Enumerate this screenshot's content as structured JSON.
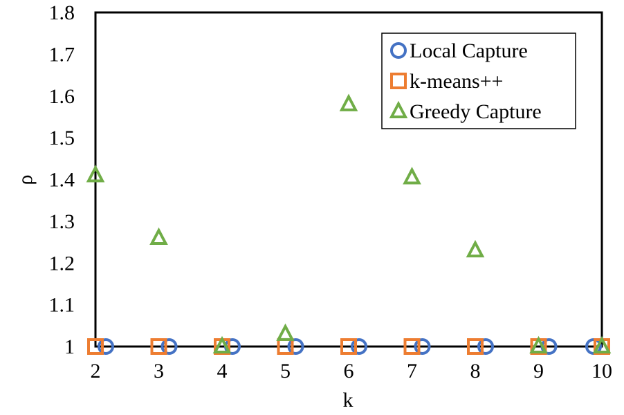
{
  "chart_data": {
    "type": "scatter",
    "xlabel": "k",
    "ylabel": "ρ",
    "x_ticks": [
      "2",
      "3",
      "4",
      "5",
      "6",
      "7",
      "8",
      "9",
      "10"
    ],
    "y_ticks": [
      "1",
      "1.1",
      "1.2",
      "1.3",
      "1.4",
      "1.5",
      "1.6",
      "1.7",
      "1.8"
    ],
    "xlim": [
      2,
      10
    ],
    "ylim": [
      1,
      1.8
    ],
    "grid": false,
    "legend_position": "top-right",
    "series": [
      {
        "name": "Local Capture",
        "marker": "circle",
        "color": "#4472C4",
        "points": [
          {
            "x": 2,
            "y": 1
          },
          {
            "x": 3,
            "y": 1
          },
          {
            "x": 4,
            "y": 1
          },
          {
            "x": 5,
            "y": 1
          },
          {
            "x": 6,
            "y": 1
          },
          {
            "x": 7,
            "y": 1
          },
          {
            "x": 8,
            "y": 1
          },
          {
            "x": 9,
            "y": 1
          },
          {
            "x": 10,
            "y": 1
          }
        ]
      },
      {
        "name": "k-means++",
        "marker": "square",
        "color": "#ED7D31",
        "points": [
          {
            "x": 2,
            "y": 1
          },
          {
            "x": 3,
            "y": 1
          },
          {
            "x": 4,
            "y": 1
          },
          {
            "x": 5,
            "y": 1
          },
          {
            "x": 6,
            "y": 1
          },
          {
            "x": 7,
            "y": 1
          },
          {
            "x": 8,
            "y": 1
          },
          {
            "x": 9,
            "y": 1
          },
          {
            "x": 10,
            "y": 1
          }
        ]
      },
      {
        "name": "Greedy Capture",
        "marker": "triangle",
        "color": "#70AD47",
        "points": [
          {
            "x": 2,
            "y": 1.41
          },
          {
            "x": 3,
            "y": 1.26
          },
          {
            "x": 4,
            "y": 1
          },
          {
            "x": 5,
            "y": 1.03
          },
          {
            "x": 6,
            "y": 1.58
          },
          {
            "x": 7,
            "y": 1.405
          },
          {
            "x": 8,
            "y": 1.23
          },
          {
            "x": 9,
            "y": 1
          },
          {
            "x": 10,
            "y": 1
          }
        ]
      }
    ]
  }
}
